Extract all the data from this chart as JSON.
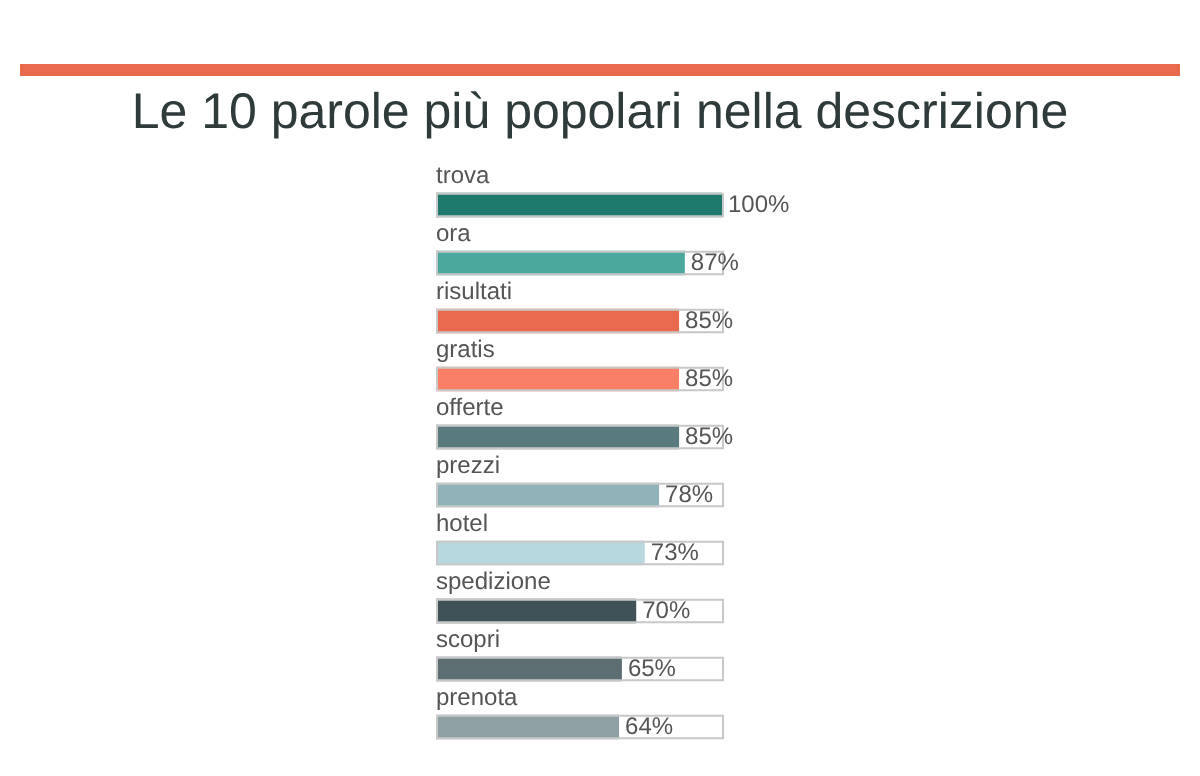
{
  "chart_data": {
    "type": "bar",
    "orientation": "horizontal",
    "title": "Le 10 parole più popolari nella descrizione",
    "categories": [
      "trova",
      "ora",
      "risultati",
      "gratis",
      "offerte",
      "prezzi",
      "hotel",
      "spedizione",
      "scopri",
      "prenota"
    ],
    "values": [
      100,
      87,
      85,
      85,
      85,
      78,
      73,
      70,
      65,
      64
    ],
    "colors": [
      "#1f7a6e",
      "#4aa89c",
      "#e8694d",
      "#f98066",
      "#5a7b7d",
      "#8fb3b8",
      "#b8d8df",
      "#3f5257",
      "#5d6e73",
      "#8fa0a4"
    ],
    "value_labels": [
      "100%",
      "87%",
      "85%",
      "85%",
      "85%",
      "78%",
      "73%",
      "70%",
      "65%",
      "64%"
    ],
    "legend": false
  }
}
